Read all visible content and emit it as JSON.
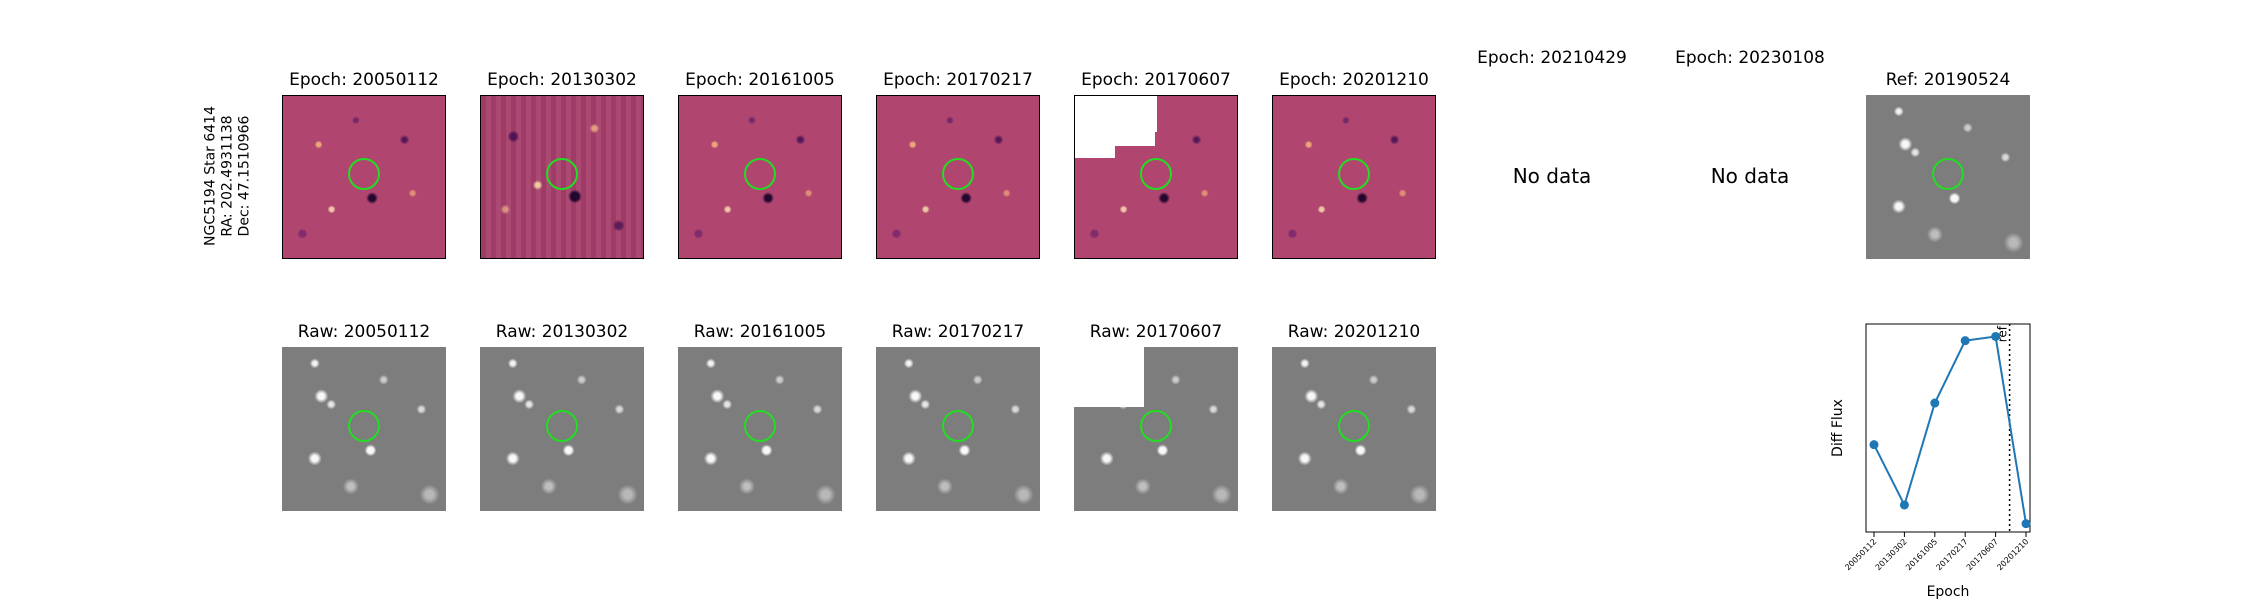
{
  "object": {
    "name": "NGC5194 Star 6414",
    "ra": "RA: 202.4931138",
    "dec": "Dec: 47.1510966"
  },
  "diff_titles": [
    "Epoch: 20050112",
    "Epoch: 20130302",
    "Epoch: 20161005",
    "Epoch: 20170217",
    "Epoch: 20170607",
    "Epoch: 20201210",
    "Epoch: 20210429",
    "Epoch: 20230108"
  ],
  "no_data_label": "No data",
  "ref_title": "Ref: 20190524",
  "raw_titles": [
    "Raw: 20050112",
    "Raw: 20130302",
    "Raw: 20161005",
    "Raw: 20170217",
    "Raw: 20170607",
    "Raw: 20201210"
  ],
  "colors": {
    "aperture": "#22dd22",
    "series": "#1f77b4",
    "diff_background": "#b0466f",
    "raw_background": "#7d7d7d"
  },
  "chart_data": {
    "type": "line",
    "xlabel": "Epoch",
    "ylabel": "Diff Flux",
    "x": [
      "20050112",
      "20130302",
      "20161005",
      "20170217",
      "20170607",
      "20201210"
    ],
    "series": [
      {
        "values": [
          0.42,
          0.13,
          0.62,
          0.92,
          0.94,
          0.04
        ]
      }
    ],
    "y_ticks_shown": false,
    "ref_marker": {
      "label": "ref",
      "between": [
        "20170607",
        "20201210"
      ],
      "style": "dotted"
    }
  }
}
